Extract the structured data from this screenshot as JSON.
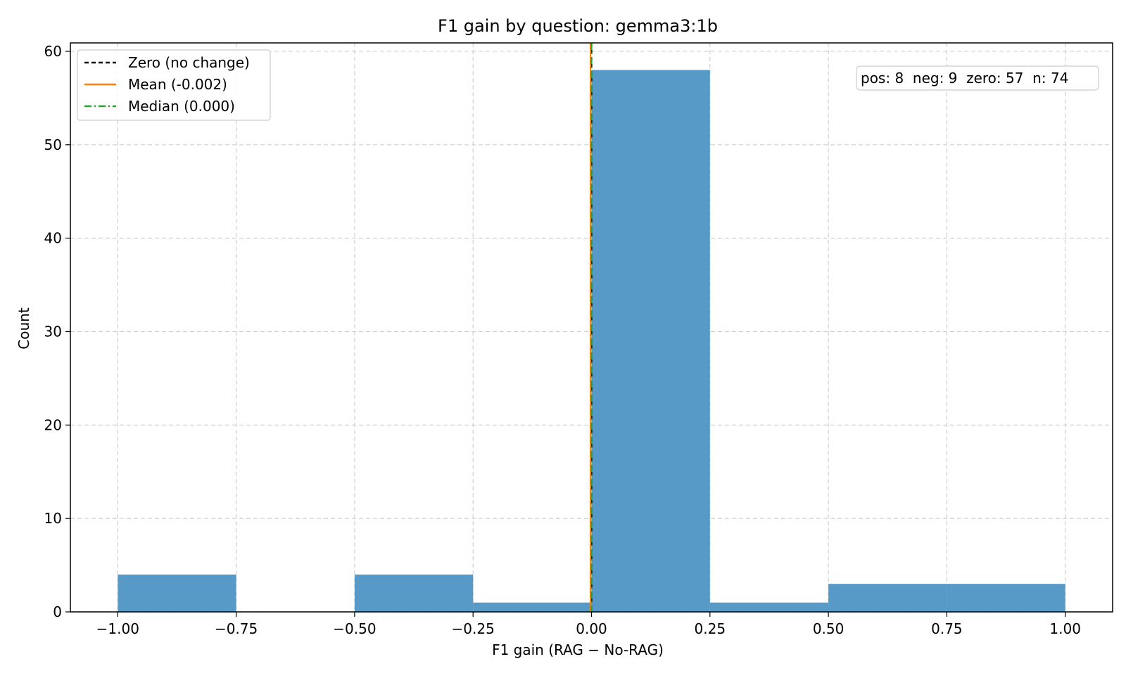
{
  "chart_data": {
    "type": "bar",
    "title": "F1 gain by question: gemma3:1b",
    "xlabel": "F1 gain (RAG − No-RAG)",
    "ylabel": "Count",
    "xlim": [
      -1.1,
      1.1
    ],
    "ylim": [
      0,
      60.9
    ],
    "grid": true,
    "bins": [
      {
        "x0": -1.0,
        "x1": -0.75,
        "count": 4
      },
      {
        "x0": -0.75,
        "x1": -0.5,
        "count": 0
      },
      {
        "x0": -0.5,
        "x1": -0.25,
        "count": 4
      },
      {
        "x0": -0.25,
        "x1": 0.0,
        "count": 1
      },
      {
        "x0": 0.0,
        "x1": 0.25,
        "count": 58
      },
      {
        "x0": 0.25,
        "x1": 0.5,
        "count": 1
      },
      {
        "x0": 0.5,
        "x1": 0.75,
        "count": 3
      },
      {
        "x0": 0.75,
        "x1": 1.0,
        "count": 3
      }
    ],
    "xticks": [
      {
        "value": -1.0,
        "label": "−1.00"
      },
      {
        "value": -0.75,
        "label": "−0.75"
      },
      {
        "value": -0.5,
        "label": "−0.50"
      },
      {
        "value": -0.25,
        "label": "−0.25"
      },
      {
        "value": 0.0,
        "label": "0.00"
      },
      {
        "value": 0.25,
        "label": "0.25"
      },
      {
        "value": 0.5,
        "label": "0.50"
      },
      {
        "value": 0.75,
        "label": "0.75"
      },
      {
        "value": 1.0,
        "label": "1.00"
      }
    ],
    "yticks": [
      {
        "value": 0,
        "label": "0"
      },
      {
        "value": 10,
        "label": "10"
      },
      {
        "value": 20,
        "label": "20"
      },
      {
        "value": 30,
        "label": "30"
      },
      {
        "value": 40,
        "label": "40"
      },
      {
        "value": 50,
        "label": "50"
      },
      {
        "value": 60,
        "label": "60"
      }
    ],
    "reference_lines": [
      {
        "key": "zero",
        "label": "Zero (no change)",
        "x": 0.0,
        "color": "#000000",
        "style": "dashed"
      },
      {
        "key": "mean",
        "label": "Mean (-0.002)",
        "x": -0.002,
        "color": "#ff7f0e",
        "style": "solid"
      },
      {
        "key": "median",
        "label": "Median (0.000)",
        "x": 0.0,
        "color": "#2ca02c",
        "style": "dashdot"
      }
    ],
    "legend_position": "top-left",
    "stats_box": "pos: 8  neg: 9  zero: 57  n: 74",
    "bar_color": "#5799c7"
  }
}
